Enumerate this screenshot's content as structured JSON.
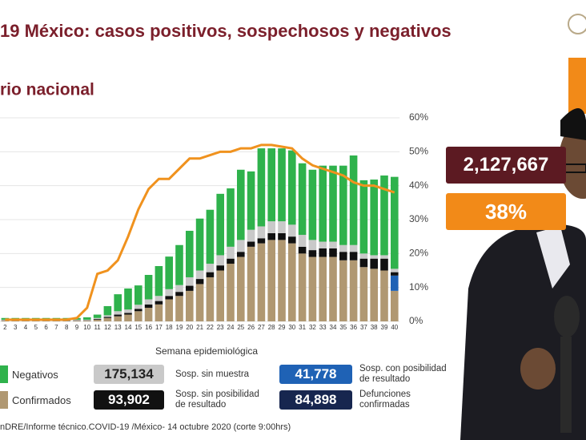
{
  "chart_data": {
    "type": "stacked-bar-line",
    "title": "19 México: casos positivos, sospechosos y negativos",
    "subtitle": "rio nacional",
    "x_label": "Semana epidemiológica",
    "categories": [
      "2",
      "3",
      "4",
      "5",
      "6",
      "7",
      "8",
      "9",
      "10",
      "11",
      "12",
      "13",
      "14",
      "15",
      "16",
      "17",
      "18",
      "19",
      "20",
      "21",
      "22",
      "23",
      "24",
      "25",
      "26",
      "27",
      "28",
      "29",
      "30",
      "31",
      "32",
      "33",
      "34",
      "35",
      "36",
      "37",
      "38",
      "39",
      "40"
    ],
    "ylim": [
      0,
      60
    ],
    "y2lim": [
      0,
      60
    ],
    "y2ticks": [
      {
        "value": 0,
        "label": "0%"
      },
      {
        "value": 10,
        "label": "10%"
      },
      {
        "value": 20,
        "label": "20%"
      },
      {
        "value": 30,
        "label": "30%"
      },
      {
        "value": 40,
        "label": "40%"
      },
      {
        "value": 50,
        "label": "50%"
      },
      {
        "value": 60,
        "label": "60%"
      }
    ],
    "grid": true,
    "series": [
      {
        "name": "Confirmados",
        "color": "#b09872",
        "values": [
          0.2,
          0.2,
          0.2,
          0.2,
          0.2,
          0.2,
          0.2,
          0.2,
          0.2,
          0.5,
          1,
          1.5,
          2,
          3,
          4,
          5,
          6.5,
          7.5,
          9,
          11,
          13,
          15,
          17,
          19,
          22,
          23,
          24,
          24,
          23,
          20,
          19,
          19,
          19,
          18,
          18,
          16,
          15.5,
          15,
          9
        ]
      },
      {
        "name": "Sosp. con posibilidad de resultado",
        "color": "#1f62b5",
        "total": {
          "value": 41778,
          "label": "41,778"
        },
        "values": [
          0,
          0,
          0,
          0,
          0,
          0,
          0,
          0,
          0,
          0,
          0,
          0,
          0,
          0,
          0,
          0,
          0,
          0,
          0,
          0,
          0,
          0,
          0,
          0,
          0,
          0,
          0,
          0,
          0,
          0,
          0,
          0,
          0,
          0,
          0,
          0,
          0,
          0,
          4.5
        ]
      },
      {
        "name": "Sosp. sin posibilidad de resultado",
        "color": "#111111",
        "total": {
          "value": 93902,
          "label": "93,902"
        },
        "values": [
          0.1,
          0.1,
          0.1,
          0.1,
          0.1,
          0.1,
          0.1,
          0.1,
          0.1,
          0.2,
          0.3,
          0.5,
          0.5,
          0.7,
          1,
          1,
          1,
          1.2,
          1.5,
          1.5,
          1.5,
          1.5,
          1.5,
          1.5,
          1.5,
          1.5,
          2,
          2,
          2,
          2,
          2,
          2.5,
          2.5,
          2.5,
          2.5,
          2.5,
          3,
          3.5,
          1
        ]
      },
      {
        "name": "Sosp. sin muestra",
        "color": "#c9c9c9",
        "total": {
          "value": 175134,
          "label": "175,134"
        },
        "values": [
          0.2,
          0.2,
          0.2,
          0.2,
          0.2,
          0.2,
          0.2,
          0.2,
          0.2,
          0.3,
          0.5,
          1,
          1,
          1.2,
          1.5,
          1.5,
          2,
          2,
          2.5,
          2.5,
          2.5,
          3,
          3.5,
          3.5,
          3.5,
          3.5,
          3.5,
          3.5,
          3.5,
          3.5,
          3,
          2,
          2,
          2,
          2,
          1.5,
          1,
          1,
          1
        ]
      },
      {
        "name": "Negativos",
        "color": "#2fb24c",
        "values": [
          0.5,
          0.5,
          0.5,
          0.5,
          0.5,
          0.5,
          0.5,
          0.5,
          0.7,
          1,
          2.7,
          5,
          6.2,
          5.7,
          7.2,
          8.8,
          9.6,
          11.8,
          13.7,
          15.3,
          15.9,
          18.1,
          17.2,
          20.7,
          17.2,
          23,
          21.5,
          21.5,
          21.9,
          21.1,
          20.7,
          22.4,
          22.4,
          23.4,
          26.4,
          21.6,
          22.3,
          23.5,
          27.1
        ]
      }
    ],
    "line": {
      "color": "#f0921e",
      "axis": "y2",
      "values": [
        0.5,
        0.5,
        0.5,
        0.5,
        0.5,
        0.5,
        0.5,
        1,
        4,
        14,
        15,
        18,
        25,
        33,
        39,
        42,
        42,
        45,
        48,
        48,
        49,
        50,
        50,
        51,
        51,
        52,
        52,
        51.5,
        51,
        48,
        46,
        45,
        44,
        43,
        41,
        40,
        40,
        39,
        38
      ]
    },
    "extra_legend": {
      "name": "Defunciones confirmadas",
      "color": "#17264f",
      "total": {
        "value": 84898,
        "label": "84,898"
      }
    },
    "callouts": [
      {
        "value": 2127667,
        "label": "2,127,667",
        "color": "#5c1a22"
      },
      {
        "value": 38,
        "label": "38%",
        "color": "#f28a18"
      }
    ],
    "footer": "nDRE/Informe técnico.COVID-19 /México- 14 octubre 2020 (corte 9:00hrs)"
  }
}
